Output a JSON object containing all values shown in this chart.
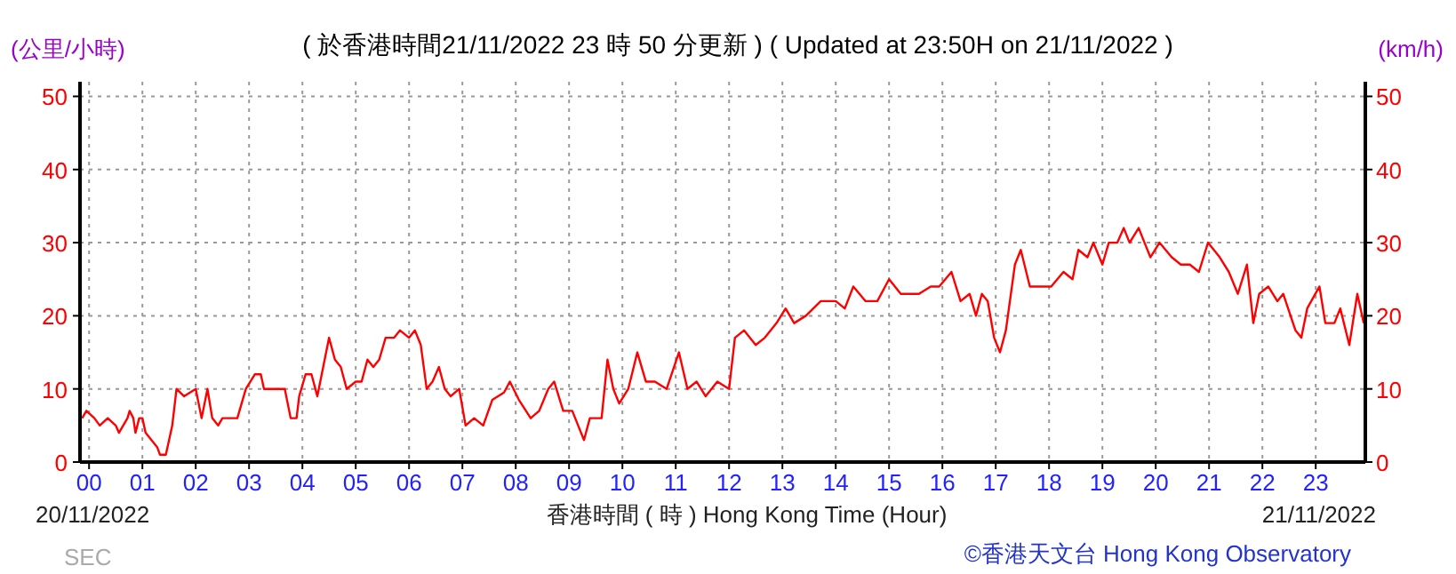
{
  "chart_data": {
    "type": "line",
    "title": "( 於香港時間21/11/2022 23 時 50 分更新 ) ( Updated at 23:50H on 21/11/2022 )",
    "ylabel": "(公里/小時)",
    "y2label": "(km/h)",
    "xlabel": "香港時間 ( 時 ) Hong Kong Time (Hour)",
    "annotations": [
      "20/11/2022",
      "21/11/2022",
      "©香港天文台 Hong Kong Observatory",
      "SEC"
    ],
    "xlim": [
      -0.17,
      23.93
    ],
    "xticks": [
      {
        "value": 0,
        "label": "00"
      },
      {
        "value": 1,
        "label": "01"
      },
      {
        "value": 2,
        "label": "02"
      },
      {
        "value": 3,
        "label": "03"
      },
      {
        "value": 4,
        "label": "04"
      },
      {
        "value": 5,
        "label": "05"
      },
      {
        "value": 6,
        "label": "06"
      },
      {
        "value": 7,
        "label": "07"
      },
      {
        "value": 8,
        "label": "08"
      },
      {
        "value": 9,
        "label": "09"
      },
      10,
      11,
      12,
      13,
      14,
      15,
      16,
      17,
      18,
      19,
      20,
      21,
      22,
      23
    ],
    "ylim": [
      0,
      52
    ],
    "yticks": [
      0,
      10,
      20,
      30,
      40,
      50
    ],
    "y2lim": [
      0,
      52
    ],
    "y2ticks": [
      0,
      10,
      20,
      30,
      40,
      50
    ],
    "grid": true,
    "series": [
      {
        "color": "#ff0000",
        "line_style": "solid",
        "x": [
          -0.13,
          -0.05,
          0.1,
          0.2,
          0.35,
          0.5,
          0.56,
          0.72,
          0.76,
          0.83,
          0.87,
          0.94,
          1.0,
          1.06,
          1.17,
          1.28,
          1.33,
          1.44,
          1.56,
          1.64,
          1.78,
          2.0,
          2.11,
          2.22,
          2.31,
          2.42,
          2.5,
          2.78,
          2.94,
          3.11,
          3.22,
          3.28,
          3.67,
          3.78,
          3.89,
          3.94,
          4.06,
          4.17,
          4.28,
          4.39,
          4.5,
          4.61,
          4.72,
          4.83,
          5.0,
          5.11,
          5.22,
          5.33,
          5.44,
          5.56,
          5.72,
          5.83,
          6.0,
          6.11,
          6.22,
          6.33,
          6.44,
          6.56,
          6.67,
          6.78,
          6.94,
          7.06,
          7.22,
          7.39,
          7.56,
          7.78,
          7.89,
          8.06,
          8.28,
          8.44,
          8.61,
          8.72,
          8.89,
          9.06,
          9.17,
          9.28,
          9.39,
          9.61,
          9.72,
          9.83,
          9.94,
          10.11,
          10.28,
          10.44,
          10.61,
          10.83,
          11.06,
          11.22,
          11.39,
          11.56,
          11.78,
          12.0,
          12.11,
          12.28,
          12.5,
          12.67,
          12.89,
          13.06,
          13.22,
          13.44,
          13.72,
          14.0,
          14.17,
          14.33,
          14.56,
          14.78,
          15.0,
          15.22,
          15.56,
          15.78,
          15.94,
          16.17,
          16.34,
          16.51,
          16.63,
          16.74,
          16.85,
          16.97,
          17.08,
          17.19,
          17.36,
          17.47,
          17.64,
          17.81,
          18.04,
          18.27,
          18.44,
          18.55,
          18.72,
          18.83,
          19.0,
          19.12,
          19.28,
          19.4,
          19.51,
          19.68,
          19.79,
          19.9,
          20.07,
          20.3,
          20.47,
          20.64,
          20.81,
          20.98,
          21.2,
          21.37,
          21.54,
          21.71,
          21.83,
          21.94,
          22.11,
          22.28,
          22.39,
          22.62,
          22.73,
          22.84,
          23.07,
          23.18,
          23.35,
          23.46,
          23.63,
          23.78,
          23.9
        ],
        "values": [
          6,
          7,
          6,
          5,
          6,
          5,
          4,
          6,
          7,
          6,
          4,
          6,
          6,
          4,
          3,
          2,
          1,
          1,
          5,
          10,
          9,
          10,
          6,
          10,
          6,
          5,
          6,
          6,
          10,
          12,
          12,
          10,
          10,
          6,
          6,
          9,
          12,
          12,
          9,
          13,
          17,
          14,
          13,
          10,
          11,
          11,
          14,
          13,
          14,
          17,
          17,
          18,
          17,
          18,
          16,
          10,
          11,
          13,
          10,
          9,
          10,
          5,
          6,
          5,
          8.5,
          9.5,
          11,
          8.5,
          6,
          7,
          10,
          11,
          7,
          7,
          5,
          3,
          6,
          6,
          14,
          10,
          8,
          10,
          15,
          11,
          11,
          10,
          15,
          10,
          11,
          9,
          11,
          10,
          17,
          18,
          16,
          17,
          19,
          21,
          19,
          20,
          22,
          22,
          21,
          24,
          22,
          22,
          25,
          23,
          23,
          24,
          24,
          26,
          22,
          23,
          20,
          23,
          22,
          17,
          15,
          18,
          27,
          29,
          24,
          24,
          24,
          26,
          25,
          29,
          28,
          30,
          27,
          30,
          30,
          32,
          30,
          32,
          30,
          28,
          30,
          28,
          27,
          27,
          26,
          30,
          28,
          26,
          23,
          27,
          19,
          23,
          24,
          22,
          23,
          18,
          17,
          21,
          24,
          19,
          19,
          21,
          16,
          23,
          19
        ]
      }
    ]
  }
}
